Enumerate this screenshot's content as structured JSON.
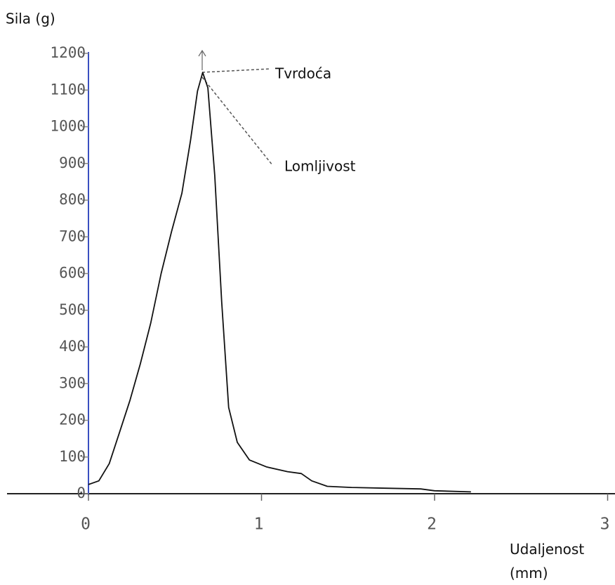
{
  "chart_data": {
    "type": "line",
    "y_label": "Sila (g)",
    "x_label": "Udaljenost (mm)",
    "annotations": [
      "Tvrdoća",
      "Lomljivost"
    ],
    "x": [
      0,
      0.06,
      0.12,
      0.18,
      0.24,
      0.3,
      0.36,
      0.42,
      0.48,
      0.54,
      0.59,
      0.63,
      0.66,
      0.69,
      0.73,
      0.77,
      0.81,
      0.86,
      0.93,
      1.03,
      1.15,
      1.23,
      1.29,
      1.38,
      1.52,
      1.72,
      1.92,
      2.0,
      2.21
    ],
    "series": [
      {
        "color": "#111111",
        "values": [
          25,
          35,
          82,
          168,
          255,
          354,
          465,
          600,
          714,
          819,
          963,
          1097,
          1148,
          1106,
          867,
          522,
          235,
          140,
          92,
          73,
          60,
          55,
          35,
          20,
          17,
          15,
          13,
          8,
          5
        ]
      }
    ],
    "xlim": [
      0,
      3
    ],
    "xticks": [
      0,
      1,
      2,
      3
    ],
    "ylim": [
      0,
      1200
    ],
    "yticks": [
      0,
      100,
      200,
      300,
      400,
      500,
      600,
      700,
      800,
      900,
      1000,
      1100,
      1200
    ]
  }
}
